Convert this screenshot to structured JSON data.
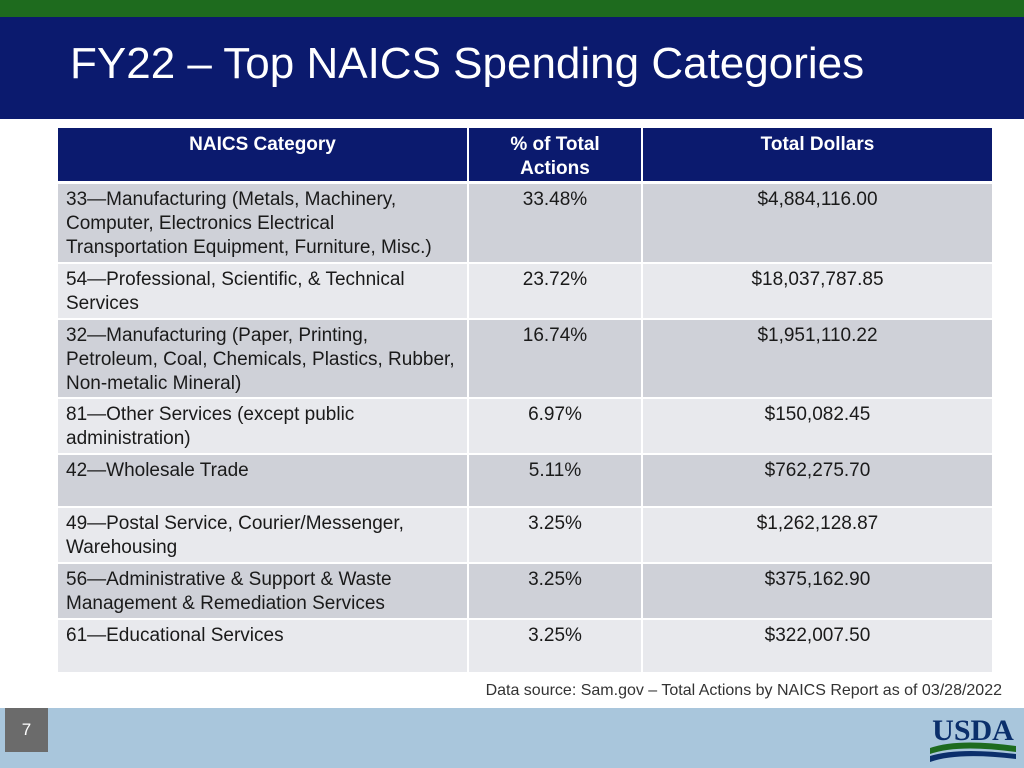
{
  "slide": {
    "title": "FY22 – Top NAICS Spending Categories",
    "page_number": "7",
    "source": "Data source: Sam.gov – Total Actions by NAICS Report as of 03/28/2022",
    "logo_text": "USDA"
  },
  "colors": {
    "title_band": "#0b1a6e",
    "top_bar": "#1e6b1e",
    "footer_band": "#a9c6dc",
    "row_dark": "#cfd1d8",
    "row_light": "#e8e9ed"
  },
  "table": {
    "headers": [
      "NAICS Category",
      "% of Total Actions",
      "Total Dollars"
    ],
    "rows": [
      {
        "category": "33—Manufacturing (Metals, Machinery, Computer, Electronics Electrical Transportation Equipment, Furniture, Misc.)",
        "percent": "33.48%",
        "dollars": "$4,884,116.00"
      },
      {
        "category": "54—Professional, Scientific, & Technical Services",
        "percent": "23.72%",
        "dollars": "$18,037,787.85"
      },
      {
        "category": "32—Manufacturing (Paper, Printing, Petroleum, Coal, Chemicals, Plastics, Rubber, Non-metalic Mineral)",
        "percent": "16.74%",
        "dollars": "$1,951,110.22"
      },
      {
        "category": "81—Other Services (except public administration)",
        "percent": "6.97%",
        "dollars": "$150,082.45"
      },
      {
        "category": "42—Wholesale Trade",
        "percent": "5.11%",
        "dollars": "$762,275.70"
      },
      {
        "category": "49—Postal Service, Courier/Messenger, Warehousing",
        "percent": "3.25%",
        "dollars": "$1,262,128.87"
      },
      {
        "category": "56—Administrative & Support & Waste Management & Remediation Services",
        "percent": "3.25%",
        "dollars": "$375,162.90"
      },
      {
        "category": "61—Educational Services",
        "percent": "3.25%",
        "dollars": "$322,007.50"
      }
    ]
  }
}
